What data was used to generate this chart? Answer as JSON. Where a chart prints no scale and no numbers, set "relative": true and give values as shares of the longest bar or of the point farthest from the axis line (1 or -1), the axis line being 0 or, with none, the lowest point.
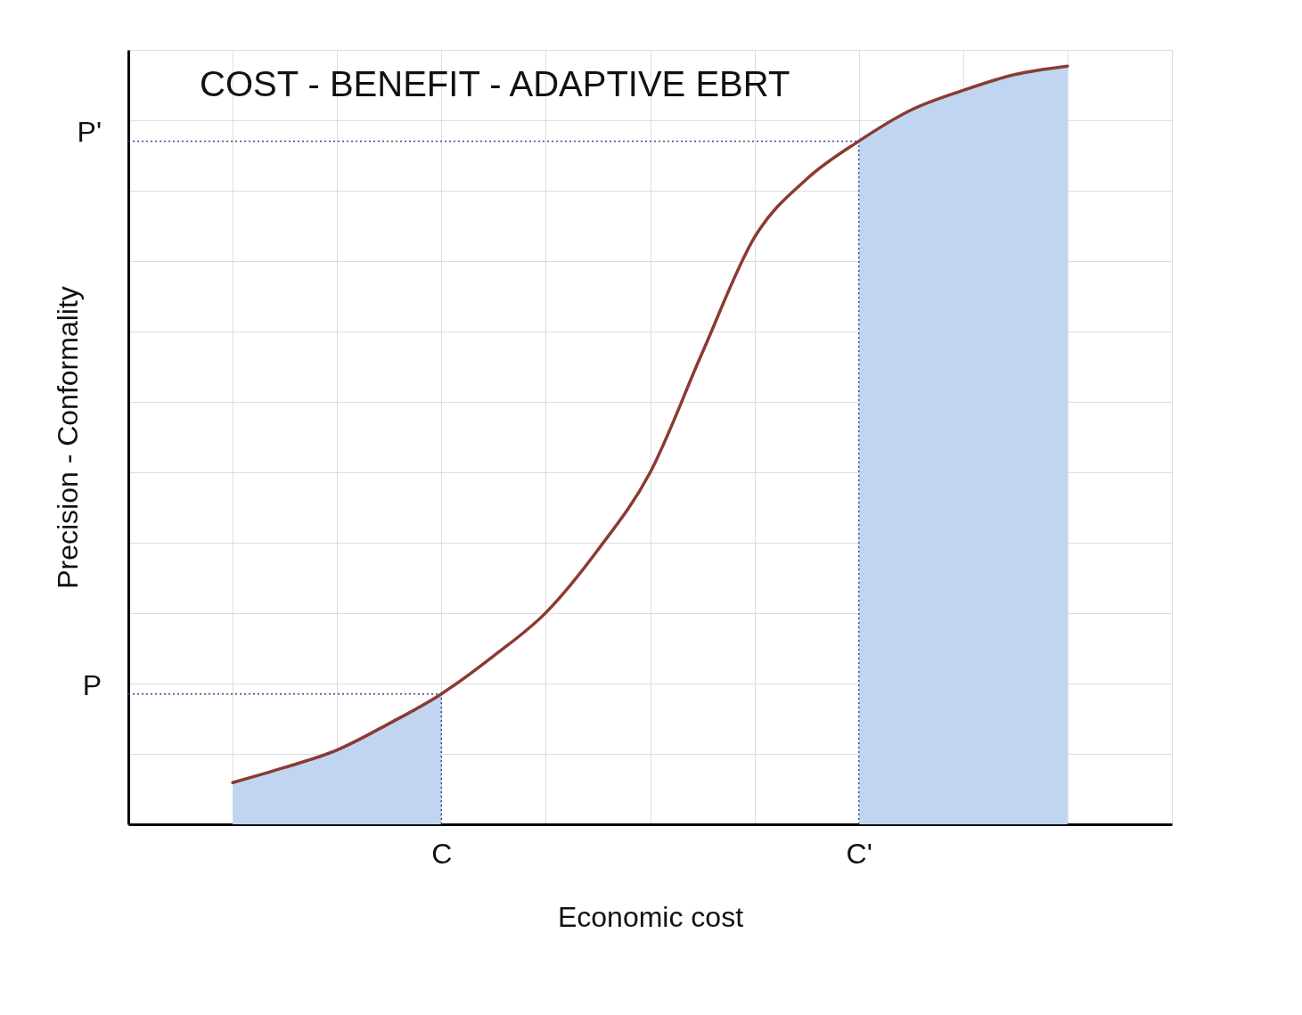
{
  "chart_data": {
    "type": "line",
    "title": "COST - BENEFIT - ADAPTIVE EBRT",
    "xlabel": "Economic cost",
    "ylabel": "Precision - Conformality",
    "relative": true,
    "grid": true,
    "categories": [
      null,
      null,
      null,
      null,
      "C",
      null,
      null,
      null,
      null,
      null,
      null,
      null,
      "C'",
      null,
      null,
      null,
      null
    ],
    "series": [
      {
        "type": "area",
        "color": "#c0d6f0",
        "values": [
          0.055,
          0.075,
          0.098,
          0.133,
          0.172,
          null,
          null,
          null,
          null,
          null,
          null,
          null,
          null,
          null,
          null,
          null,
          null
        ]
      },
      {
        "type": "area",
        "color": "#c0d6f0",
        "values": [
          null,
          null,
          null,
          null,
          null,
          null,
          null,
          null,
          null,
          null,
          null,
          null,
          0.901,
          0.942,
          0.968,
          0.989,
          1
        ]
      },
      {
        "color": "#8b3a33",
        "values": [
          0.055,
          0.075,
          0.098,
          0.133,
          0.172,
          0.222,
          0.279,
          0.362,
          0.464,
          0.622,
          0.774,
          0.851,
          0.901,
          0.942,
          0.968,
          0.989,
          1
        ]
      }
    ],
    "ref_lines": [
      {
        "axis": "y",
        "value": 0.172,
        "label": "P",
        "color": "#3b4a8a",
        "line_style": "dotted"
      },
      {
        "axis": "y",
        "value": 0.901,
        "label": "P'",
        "color": "#3b4a8a",
        "line_style": "dotted"
      },
      {
        "axis": "x",
        "value": "C",
        "color": "#3b4a8a",
        "line_style": "dotted"
      },
      {
        "axis": "x",
        "value": "C'",
        "color": "#3b4a8a",
        "line_style": "dotted"
      }
    ]
  }
}
